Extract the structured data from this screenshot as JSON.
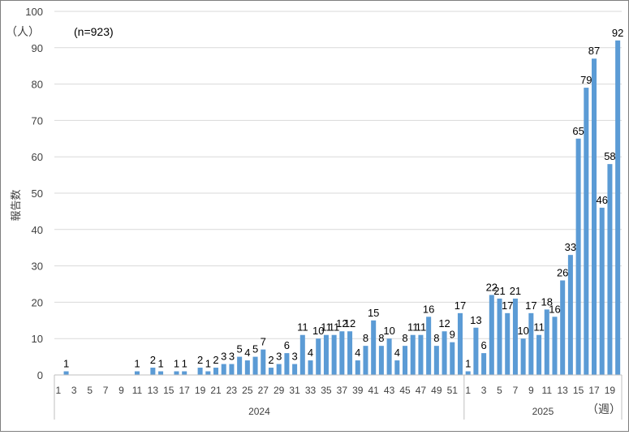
{
  "chart_data": {
    "type": "bar",
    "title": "",
    "xlabel": "",
    "ylabel": "報告数",
    "y_unit": "（人）",
    "x_unit": "（週）",
    "annotation": "(n=923)",
    "ylim": [
      0,
      100
    ],
    "yticks": [
      0,
      10,
      20,
      30,
      40,
      50,
      60,
      70,
      80,
      90,
      100
    ],
    "grid": true,
    "bar_color": "#5B9BD5",
    "groups": [
      {
        "label": "2024",
        "weeks": [
          1,
          2,
          3,
          4,
          5,
          6,
          7,
          8,
          9,
          10,
          11,
          12,
          13,
          14,
          15,
          16,
          17,
          18,
          19,
          20,
          21,
          22,
          23,
          24,
          25,
          26,
          27,
          28,
          29,
          30,
          31,
          32,
          33,
          34,
          35,
          36,
          37,
          38,
          39,
          40,
          41,
          42,
          43,
          44,
          45,
          46,
          47,
          48,
          49,
          50,
          51,
          52
        ]
      },
      {
        "label": "2025",
        "weeks": [
          1,
          2,
          3,
          4,
          5,
          6,
          7,
          8,
          9,
          10,
          11,
          12,
          13,
          14,
          15,
          16,
          17,
          18,
          19,
          20
        ]
      }
    ],
    "values": [
      0,
      1,
      0,
      0,
      0,
      0,
      0,
      0,
      0,
      0,
      1,
      0,
      2,
      1,
      0,
      1,
      1,
      0,
      2,
      1,
      2,
      3,
      3,
      5,
      4,
      5,
      7,
      2,
      3,
      6,
      3,
      11,
      4,
      10,
      11,
      11,
      12,
      12,
      4,
      8,
      15,
      8,
      10,
      4,
      8,
      11,
      11,
      16,
      8,
      12,
      9,
      17,
      1,
      13,
      6,
      22,
      21,
      17,
      21,
      10,
      17,
      11,
      18,
      16,
      26,
      33,
      65,
      79,
      87,
      46,
      58,
      92
    ]
  }
}
